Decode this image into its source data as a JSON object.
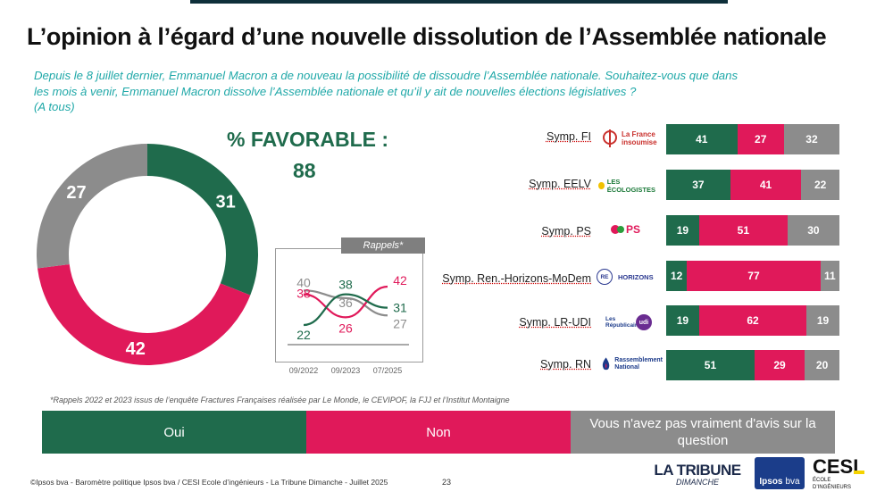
{
  "title": "L’opinion à l’égard d’une nouvelle dissolution de l’Assemblée nationale",
  "question": {
    "line1": "Depuis le 8 juillet dernier, Emmanuel Macron a de nouveau la possibilité de dissoudre l’Assemblée nationale. Souhaitez-vous que dans",
    "line2": "les mois à venir, Emmanuel Macron dissolve l’Assemblée nationale et qu’il y ait de nouvelles élections législatives ?",
    "line3": "(A tous)"
  },
  "favorable": {
    "label": "% FAVORABLE :",
    "value": "88"
  },
  "colors": {
    "oui": "#1f6b4c",
    "non": "#e0195a",
    "nsp": "#8c8c8c"
  },
  "chart_data": [
    {
      "type": "pie",
      "title": "L’opinion à l’égard d’une nouvelle dissolution de l’Assemblée nationale",
      "categories": [
        "Oui",
        "Non",
        "Vous n'avez pas vraiment d'avis sur la question"
      ],
      "values": [
        31,
        42,
        27
      ]
    },
    {
      "type": "line",
      "title": "Rappels*",
      "x": [
        "09/2022",
        "09/2023",
        "07/2025"
      ],
      "series": [
        {
          "name": "Oui",
          "values": [
            22,
            38,
            31
          ]
        },
        {
          "name": "Non",
          "values": [
            38,
            26,
            42
          ]
        },
        {
          "name": "Vous n'avez pas vraiment d'avis sur la question",
          "values": [
            40,
            36,
            27
          ]
        }
      ]
    },
    {
      "type": "bar",
      "stacked": true,
      "orientation": "horizontal",
      "categories": [
        "Symp. FI",
        "Symp. EELV",
        "Symp. PS",
        "Symp. Ren.-Horizons-MoDem",
        "Symp. LR-UDI",
        "Symp. RN"
      ],
      "series": [
        {
          "name": "Oui",
          "values": [
            41,
            37,
            19,
            12,
            19,
            51
          ]
        },
        {
          "name": "Non",
          "values": [
            27,
            41,
            51,
            77,
            62,
            29
          ]
        },
        {
          "name": "Vous n'avez pas vraiment d'avis sur la question",
          "values": [
            32,
            22,
            30,
            11,
            19,
            20
          ]
        }
      ]
    }
  ],
  "rappels_label": "Rappels*",
  "logos": {
    "fi": [
      "La France",
      "insoumise"
    ],
    "eelv": "LES ÉCOLOGISTES",
    "ps": "PS",
    "ren": [
      "RE",
      "HORIZONS"
    ],
    "lr": [
      "Les Républicains",
      "udi"
    ],
    "rn": [
      "Rassemblement",
      "National"
    ]
  },
  "footnote": "*Rappels 2022 et 2023 issus de l’enquête Fractures Françaises réalisée par Le Monde, le CEVIPOF, la FJJ et l’Institut Montaigne",
  "legend": {
    "oui": "Oui",
    "non": "Non",
    "nsp": "Vous n'avez pas vraiment d'avis sur la question"
  },
  "footer": {
    "source": "©Ipsos bva - Baromètre politique Ipsos bva / CESI Ecole d’ingénieurs - La Tribune Dimanche - Juillet 2025",
    "page": "23"
  },
  "brand": {
    "tribune1": "LA TRIBUNE",
    "tribune2": "DIMANCHE",
    "ipsos": "Ipsos",
    "bva": "bva",
    "cesi": "CESI",
    "cesi_sub": "ÉCOLE D’INGÉNIEURS"
  }
}
